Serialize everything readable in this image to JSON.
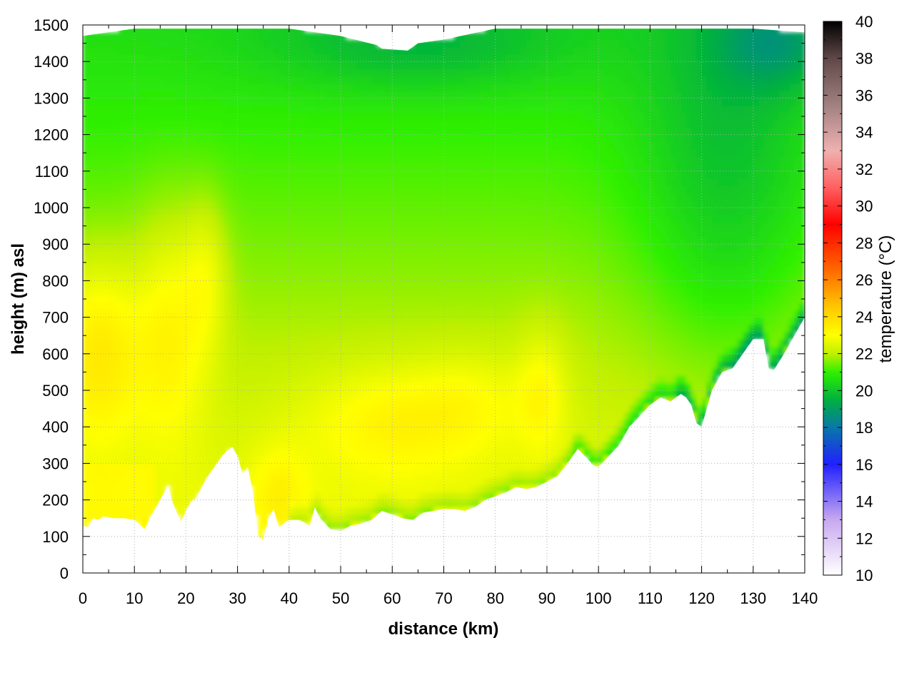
{
  "chart_data": {
    "type": "heatmap",
    "title": "",
    "xlabel": "distance (km)",
    "ylabel": "height (m) asl",
    "colorbar_label": "temperature (°C)",
    "xlim": [
      0,
      140
    ],
    "ylim": [
      0,
      1500
    ],
    "clim": [
      10,
      40
    ],
    "x_ticks": [
      "0",
      "10",
      "20",
      "30",
      "40",
      "50",
      "60",
      "70",
      "80",
      "90",
      "100",
      "110",
      "120",
      "130",
      "140"
    ],
    "y_ticks": [
      "0",
      "100",
      "200",
      "300",
      "400",
      "500",
      "600",
      "700",
      "800",
      "900",
      "1000",
      "1100",
      "1200",
      "1300",
      "1400",
      "1500"
    ],
    "colorbar_ticks": [
      "10",
      "12",
      "14",
      "16",
      "18",
      "20",
      "22",
      "24",
      "26",
      "28",
      "30",
      "32",
      "34",
      "36",
      "38",
      "40"
    ],
    "grid": true,
    "colormap": [
      {
        "t": 10,
        "color": "#ffffff"
      },
      {
        "t": 13,
        "color": "#c8a8f0"
      },
      {
        "t": 16,
        "color": "#2020ff"
      },
      {
        "t": 18,
        "color": "#0878a8"
      },
      {
        "t": 19.5,
        "color": "#00b040"
      },
      {
        "t": 21,
        "color": "#30f000"
      },
      {
        "t": 22,
        "color": "#c0f000"
      },
      {
        "t": 23,
        "color": "#ffff00"
      },
      {
        "t": 24.5,
        "color": "#ffc800"
      },
      {
        "t": 26.5,
        "color": "#ff6a00"
      },
      {
        "t": 29,
        "color": "#ff0000"
      },
      {
        "t": 31,
        "color": "#ff6060"
      },
      {
        "t": 33,
        "color": "#f0b0b0"
      },
      {
        "t": 35.5,
        "color": "#a08080"
      },
      {
        "t": 38,
        "color": "#604848"
      },
      {
        "t": 40,
        "color": "#000000"
      }
    ],
    "terrain_profile": {
      "x": [
        0,
        1,
        2,
        3,
        4,
        6,
        8,
        10,
        12,
        13,
        15,
        16.5,
        17.5,
        19,
        20,
        21,
        22,
        24,
        26,
        27,
        28,
        29,
        30,
        31,
        32,
        33,
        34,
        35,
        36,
        37,
        38,
        40,
        42,
        44,
        45,
        46,
        48,
        50,
        52,
        54,
        56,
        58,
        60,
        62,
        64,
        66,
        68,
        70,
        72,
        74,
        76,
        78,
        80,
        82,
        84,
        86,
        88,
        90,
        92,
        94,
        96,
        98,
        99,
        100,
        102,
        104,
        106,
        108,
        110,
        112,
        114,
        116,
        117,
        118,
        119,
        120,
        121,
        122,
        124,
        126,
        128,
        130,
        132,
        133,
        134,
        136,
        138,
        140
      ],
      "height_m": [
        130,
        125,
        150,
        145,
        155,
        150,
        150,
        145,
        120,
        150,
        200,
        240,
        190,
        140,
        170,
        195,
        205,
        260,
        300,
        320,
        335,
        345,
        320,
        270,
        290,
        220,
        100,
        90,
        150,
        175,
        125,
        145,
        145,
        130,
        180,
        150,
        120,
        115,
        130,
        135,
        145,
        170,
        160,
        150,
        145,
        165,
        170,
        175,
        175,
        170,
        180,
        200,
        210,
        220,
        235,
        230,
        235,
        250,
        265,
        300,
        340,
        310,
        295,
        290,
        320,
        350,
        400,
        430,
        460,
        480,
        470,
        490,
        480,
        460,
        410,
        400,
        450,
        500,
        550,
        560,
        600,
        640,
        640,
        560,
        555,
        600,
        650,
        700
      ]
    },
    "top_boundary": {
      "x": [
        0,
        5,
        10,
        20,
        30,
        40,
        50,
        57,
        58,
        63,
        65,
        70,
        80,
        90,
        100,
        110,
        120,
        130,
        140
      ],
      "height_m": [
        1470,
        1480,
        1490,
        1490,
        1490,
        1490,
        1470,
        1445,
        1435,
        1430,
        1450,
        1460,
        1490,
        1490,
        1490,
        1490,
        1490,
        1490,
        1480
      ]
    },
    "temperature_profile_note": "Shown: warm yellow-orange (~23-24 °C) near surface at x=0-10 and x=14-24, yellow (~23 °C) patches near 35-40 km and 55-70 km at 300-500 m, 88-90 km at 450-550 m; green (~20-21 °C) dominating above 800 m; cooler blue-green (~18-19 °C) near top at 1400-1500 m and along terrain east of 120 km."
  }
}
